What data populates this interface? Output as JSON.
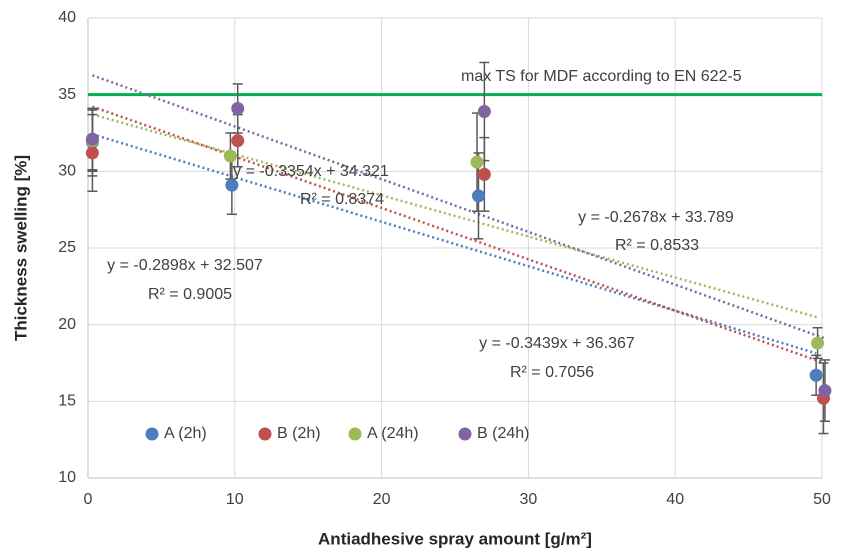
{
  "chart_data": {
    "type": "scatter",
    "xlabel": "Antiadhesive spray amount [g/m²]",
    "ylabel": "Thickness swelling [%]",
    "xlim": [
      0,
      50
    ],
    "xticks": [
      0,
      10,
      20,
      30,
      40,
      50
    ],
    "ylim": [
      10,
      40
    ],
    "yticks": [
      10,
      15,
      20,
      25,
      30,
      35,
      40
    ],
    "grid": true,
    "legend": "lower left",
    "reference_line": {
      "value": 35,
      "label": "max TS for MDF according to EN 622-5",
      "color": "#00b050"
    },
    "series": [
      {
        "name": "A (2h)",
        "color": "#4a7ebf",
        "x": [
          0.3,
          9.8,
          26.6,
          49.6
        ],
        "values": [
          31.9,
          29.1,
          28.4,
          16.7
        ],
        "errors": [
          2.2,
          1.9,
          2.8,
          1.3
        ],
        "trendline": {
          "slope": -0.2898,
          "intercept": 32.507,
          "label": "y = -0.2898x + 32.507",
          "r2_label": "R² = 0.9005",
          "label_color": "#2e75b6"
        }
      },
      {
        "name": "B (2h)",
        "color": "#c0504d",
        "x": [
          0.3,
          10.2,
          27.0,
          50.1
        ],
        "values": [
          31.2,
          32.0,
          29.8,
          15.2
        ],
        "errors": [
          2.5,
          1.7,
          2.4,
          2.3
        ],
        "trendline": {
          "slope": -0.3354,
          "intercept": 34.321,
          "label": "y = -0.3354x + 34.321",
          "r2_label": "R² = 0.8374",
          "label_color": "#c0504d"
        }
      },
      {
        "name": "A (24h)",
        "color": "#9bbb59",
        "x": [
          0.3,
          9.7,
          26.5,
          49.7
        ],
        "values": [
          32.0,
          31.0,
          30.6,
          18.8
        ],
        "errors": [
          2.0,
          1.5,
          3.2,
          1.0
        ],
        "trendline": {
          "slope": -0.2678,
          "intercept": 33.789,
          "label": "y = -0.2678x + 33.789",
          "r2_label": "R² = 0.8533",
          "label_color": "#92c050"
        }
      },
      {
        "name": "B (24h)",
        "color": "#8064a2",
        "x": [
          0.3,
          10.2,
          27.0,
          50.2
        ],
        "values": [
          32.1,
          34.1,
          33.9,
          15.7
        ],
        "errors": [
          2.0,
          1.6,
          3.2,
          2.0
        ],
        "trendline": {
          "slope": -0.3439,
          "intercept": 36.367,
          "label": "y = -0.3439x + 36.367",
          "r2_label": "R² = 0.7056",
          "label_color": "#7030a0"
        }
      }
    ]
  }
}
